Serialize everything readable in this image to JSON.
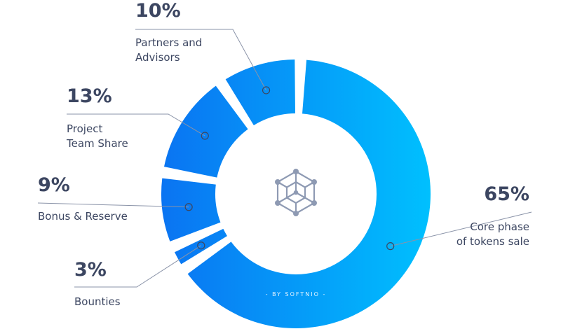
{
  "chart_data": {
    "type": "pie",
    "categories": [
      "Core phase of tokens sale",
      "Bounties",
      "Bonus & Reserve",
      "Project Team Share",
      "Partners and Advisors"
    ],
    "values": [
      65,
      3,
      9,
      13,
      10
    ],
    "value_labels": [
      "65%",
      "3%",
      "9%",
      "13%",
      "10%"
    ],
    "label_lines": [
      [
        "Core phase",
        "of tokens sale"
      ],
      [
        "Bounties"
      ],
      [
        "Bonus & Reserve"
      ],
      [
        "Project",
        "Team Share"
      ],
      [
        "Partners and",
        "Advisors"
      ]
    ],
    "style": "donut",
    "center_icon": "hexagon-network-icon",
    "watermark": "- BY SOFTNIO -"
  },
  "colors": {
    "gradient_start": "#0a74f2",
    "gradient_end": "#00c0fe",
    "text": "#3c4661",
    "leader_line": "#8a93a8"
  }
}
